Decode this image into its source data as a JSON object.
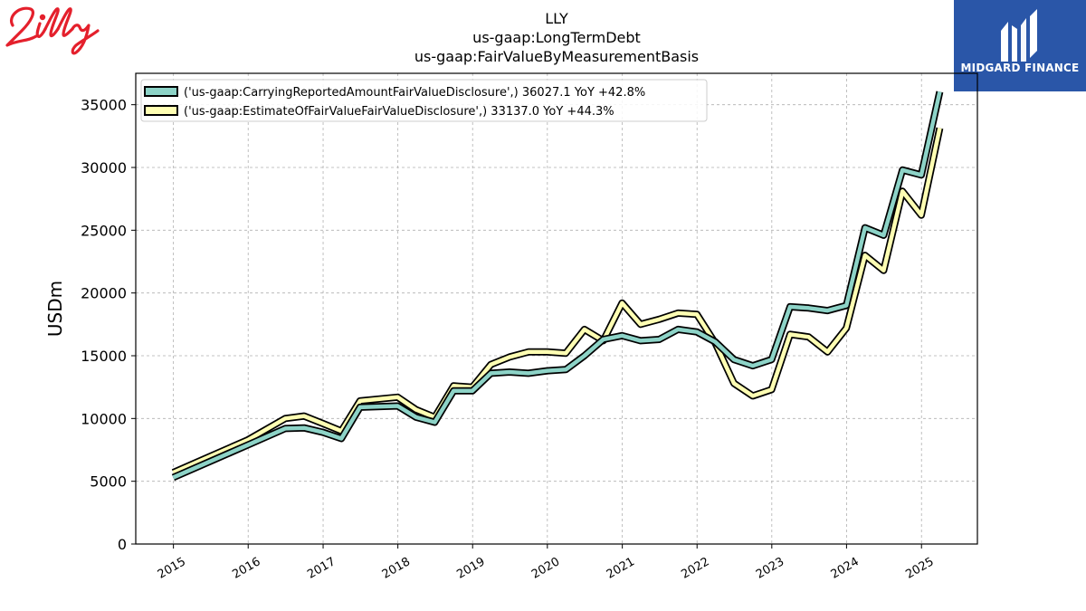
{
  "brand": {
    "company_logo": "Lilly"
  },
  "publisher": {
    "name": "MIDGARD FINANCE"
  },
  "colors": {
    "series1": "#8dd3c7",
    "series2": "#ffffb3",
    "outline": "#000000",
    "grid": "#b0b0b0"
  },
  "chart_data": {
    "type": "line",
    "title": [
      "LLY",
      "us-gaap:LongTermDebt",
      "us-gaap:FairValueByMeasurementBasis"
    ],
    "xlabel": "",
    "ylabel": "USDm",
    "ylim": [
      0,
      37500
    ],
    "yticks": [
      0,
      5000,
      10000,
      15000,
      20000,
      25000,
      30000,
      35000
    ],
    "ytick_labels": [
      "0",
      "5000",
      "10000",
      "15000",
      "20000",
      "25000",
      "30000",
      "35000"
    ],
    "xlim": [
      "2014-07-01",
      "2025-10-01"
    ],
    "xticks": [
      "2015-01-01",
      "2016-01-01",
      "2017-01-01",
      "2018-01-01",
      "2019-01-01",
      "2020-01-01",
      "2021-01-01",
      "2022-01-01",
      "2023-01-01",
      "2024-01-01",
      "2025-01-01"
    ],
    "xtick_labels": [
      "2015",
      "2016",
      "2017",
      "2018",
      "2019",
      "2020",
      "2021",
      "2022",
      "2023",
      "2024",
      "2025"
    ],
    "grid": true,
    "legend_position": "top-left",
    "series": [
      {
        "name": "('us-gaap:CarryingReportedAmountFairValueDisclosure',) 36027.1 YoY +42.8%",
        "points": [
          [
            "2014-12-31",
            5300
          ],
          [
            "2015-12-31",
            7900
          ],
          [
            "2016-06-30",
            9200
          ],
          [
            "2016-09-30",
            9250
          ],
          [
            "2016-12-31",
            8900
          ],
          [
            "2017-03-31",
            8400
          ],
          [
            "2017-06-30",
            10900
          ],
          [
            "2017-12-31",
            11000
          ],
          [
            "2018-03-31",
            10100
          ],
          [
            "2018-06-30",
            9700
          ],
          [
            "2018-09-30",
            12200
          ],
          [
            "2018-12-31",
            12200
          ],
          [
            "2019-03-31",
            13600
          ],
          [
            "2019-06-30",
            13700
          ],
          [
            "2019-09-30",
            13600
          ],
          [
            "2019-12-31",
            13800
          ],
          [
            "2020-03-31",
            13900
          ],
          [
            "2020-06-30",
            15000
          ],
          [
            "2020-09-30",
            16300
          ],
          [
            "2020-12-31",
            16600
          ],
          [
            "2021-03-31",
            16200
          ],
          [
            "2021-06-30",
            16300
          ],
          [
            "2021-09-30",
            17100
          ],
          [
            "2021-12-31",
            16900
          ],
          [
            "2022-03-31",
            16100
          ],
          [
            "2022-06-30",
            14700
          ],
          [
            "2022-09-30",
            14200
          ],
          [
            "2022-12-31",
            14700
          ],
          [
            "2023-03-31",
            18900
          ],
          [
            "2023-06-30",
            18800
          ],
          [
            "2023-09-30",
            18600
          ],
          [
            "2023-12-31",
            19000
          ],
          [
            "2024-03-31",
            25200
          ],
          [
            "2024-06-30",
            24600
          ],
          [
            "2024-09-30",
            29800
          ],
          [
            "2024-12-31",
            29400
          ],
          [
            "2025-03-31",
            36027.1
          ]
        ]
      },
      {
        "name": "('us-gaap:EstimateOfFairValueFairValueDisclosure',) 33137.0 YoY +44.3%",
        "points": [
          [
            "2014-12-31",
            5700
          ],
          [
            "2015-12-31",
            8300
          ],
          [
            "2016-06-30",
            10000
          ],
          [
            "2016-09-30",
            10200
          ],
          [
            "2016-12-31",
            9600
          ],
          [
            "2017-03-31",
            9000
          ],
          [
            "2017-06-30",
            11400
          ],
          [
            "2017-12-31",
            11700
          ],
          [
            "2018-03-31",
            10700
          ],
          [
            "2018-06-30",
            10100
          ],
          [
            "2018-09-30",
            12600
          ],
          [
            "2018-12-31",
            12500
          ],
          [
            "2019-03-31",
            14300
          ],
          [
            "2019-06-30",
            14900
          ],
          [
            "2019-09-30",
            15300
          ],
          [
            "2019-12-31",
            15300
          ],
          [
            "2020-03-31",
            15200
          ],
          [
            "2020-06-30",
            17100
          ],
          [
            "2020-09-30",
            16200
          ],
          [
            "2020-12-31",
            19200
          ],
          [
            "2021-03-31",
            17500
          ],
          [
            "2021-06-30",
            17900
          ],
          [
            "2021-09-30",
            18400
          ],
          [
            "2021-12-31",
            18300
          ],
          [
            "2022-03-31",
            16000
          ],
          [
            "2022-06-30",
            12800
          ],
          [
            "2022-09-30",
            11800
          ],
          [
            "2022-12-31",
            12300
          ],
          [
            "2023-03-31",
            16700
          ],
          [
            "2023-06-30",
            16500
          ],
          [
            "2023-09-30",
            15300
          ],
          [
            "2023-12-31",
            17200
          ],
          [
            "2024-03-31",
            23000
          ],
          [
            "2024-06-30",
            21800
          ],
          [
            "2024-09-30",
            28100
          ],
          [
            "2024-12-31",
            26200
          ],
          [
            "2025-03-31",
            33137.0
          ]
        ]
      }
    ]
  }
}
